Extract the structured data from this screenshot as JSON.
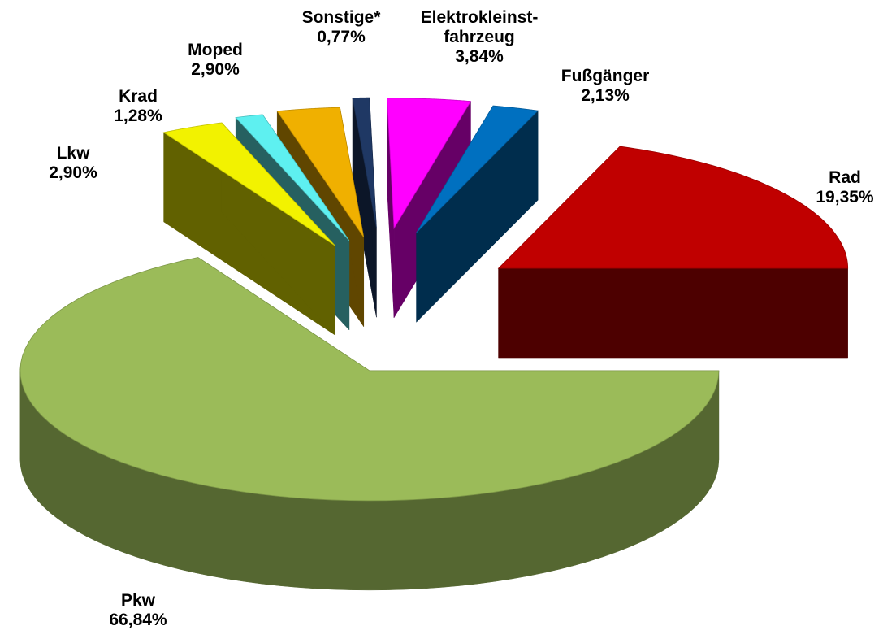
{
  "chart_data": {
    "type": "pie3d",
    "categories": [
      "Pkw",
      "Lkw",
      "Krad",
      "Moped",
      "Sonstige*",
      "Elektrokleinst-\nfahrzeug",
      "Fußgänger",
      "Rad"
    ],
    "values": [
      66.84,
      2.9,
      1.28,
      2.9,
      0.77,
      3.84,
      2.13,
      19.35
    ],
    "value_labels": [
      "66,84%",
      "2,90%",
      "1,28%",
      "2,90%",
      "0,77%",
      "3,84%",
      "2,13%",
      "19,35%"
    ],
    "colors": [
      "#9bbb59",
      "#f2f200",
      "#5ef0f0",
      "#f0b000",
      "#1f3864",
      "#ff00ff",
      "#0070c0",
      "#c00000"
    ]
  }
}
